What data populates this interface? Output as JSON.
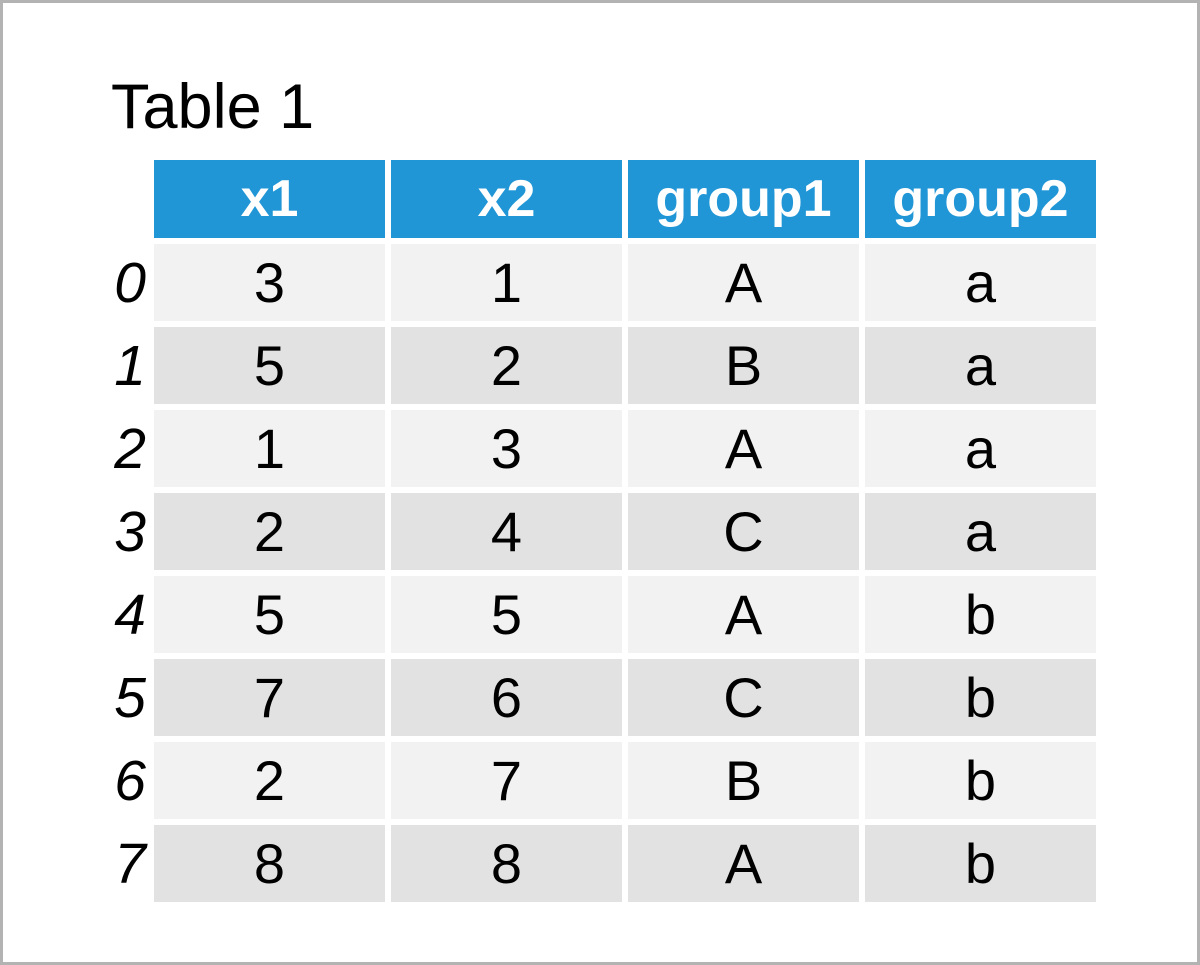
{
  "title": "Table 1",
  "colors": {
    "header_bg": "#2196d6",
    "header_text": "#ffffff",
    "row_light": "#f2f2f2",
    "row_dark": "#e2e2e2",
    "page_bg": "#ffffff",
    "page_border": "#b3b3b3",
    "text": "#000000"
  },
  "chart_data": {
    "type": "table",
    "title": "Table 1",
    "columns": [
      "x1",
      "x2",
      "group1",
      "group2"
    ],
    "index": [
      "0",
      "1",
      "2",
      "3",
      "4",
      "5",
      "6",
      "7"
    ],
    "rows": [
      [
        "3",
        "1",
        "A",
        "a"
      ],
      [
        "5",
        "2",
        "B",
        "a"
      ],
      [
        "1",
        "3",
        "A",
        "a"
      ],
      [
        "2",
        "4",
        "C",
        "a"
      ],
      [
        "5",
        "5",
        "A",
        "b"
      ],
      [
        "7",
        "6",
        "C",
        "b"
      ],
      [
        "2",
        "7",
        "B",
        "b"
      ],
      [
        "8",
        "8",
        "A",
        "b"
      ]
    ],
    "layout": {
      "header_style": "blue background, white bold text",
      "row_style": "alternating light/dark gray stripes",
      "index_style": "italic, outside table body"
    }
  }
}
